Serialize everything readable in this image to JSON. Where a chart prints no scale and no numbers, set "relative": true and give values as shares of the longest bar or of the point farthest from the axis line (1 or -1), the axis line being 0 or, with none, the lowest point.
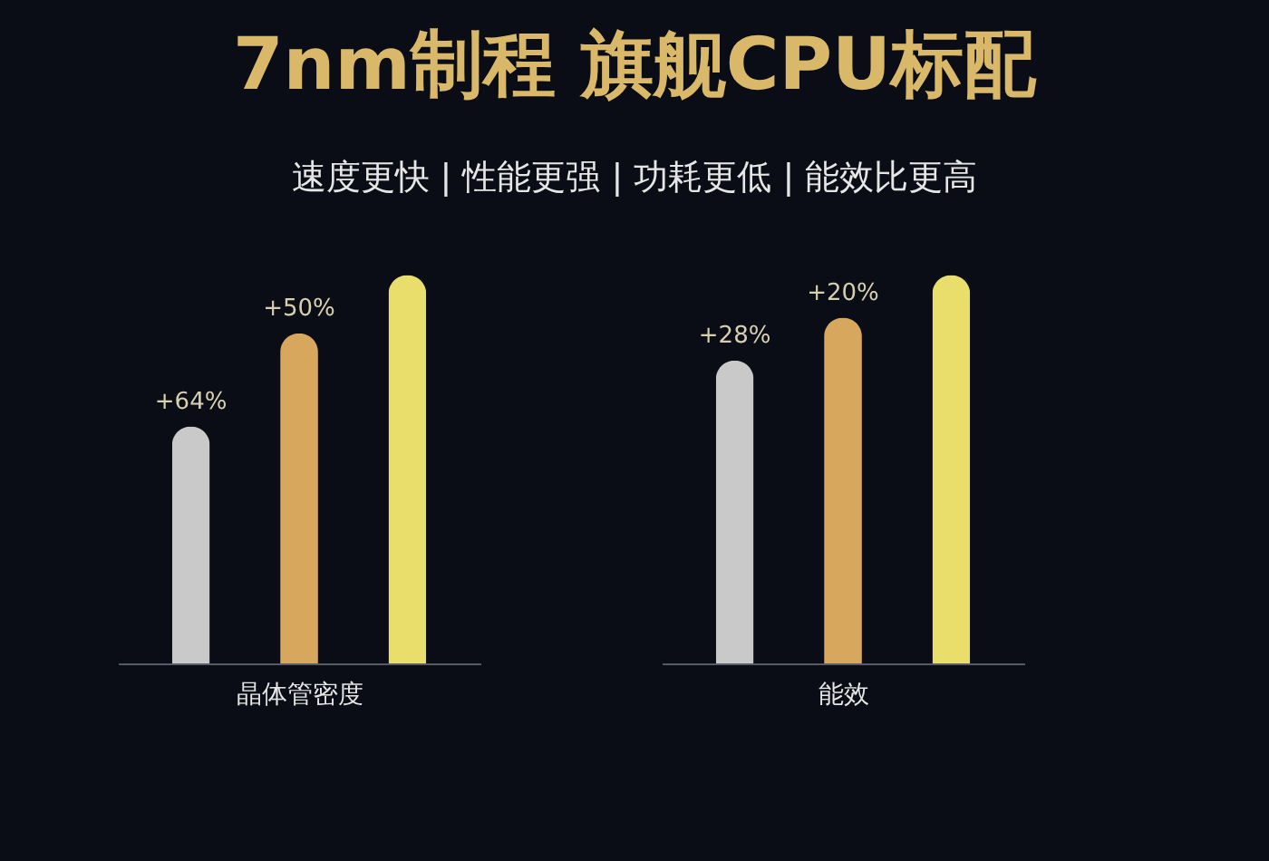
{
  "chart_data": [
    {
      "type": "bar",
      "title": "7nm制程  旗舰CPU标配",
      "subtitle": "速度更快 | 性能更强 | 功耗更低 | 能效比更高",
      "xlabel": "晶体管密度",
      "categories": [
        null,
        null,
        null
      ],
      "relative": true,
      "values": [
        0.61,
        0.85,
        1
      ],
      "colors": [
        "#c9c9c9",
        "#d8a75e",
        "#e9de6c"
      ],
      "annotations": [
        "+64%",
        "+50%"
      ]
    },
    {
      "type": "bar",
      "xlabel": "能效",
      "categories": [
        null,
        null,
        null
      ],
      "relative": true,
      "values": [
        0.78,
        0.89,
        1
      ],
      "colors": [
        "#c9c9c9",
        "#d8a75e",
        "#e9de6c"
      ],
      "annotations": [
        "+28%",
        "+20%"
      ]
    }
  ]
}
